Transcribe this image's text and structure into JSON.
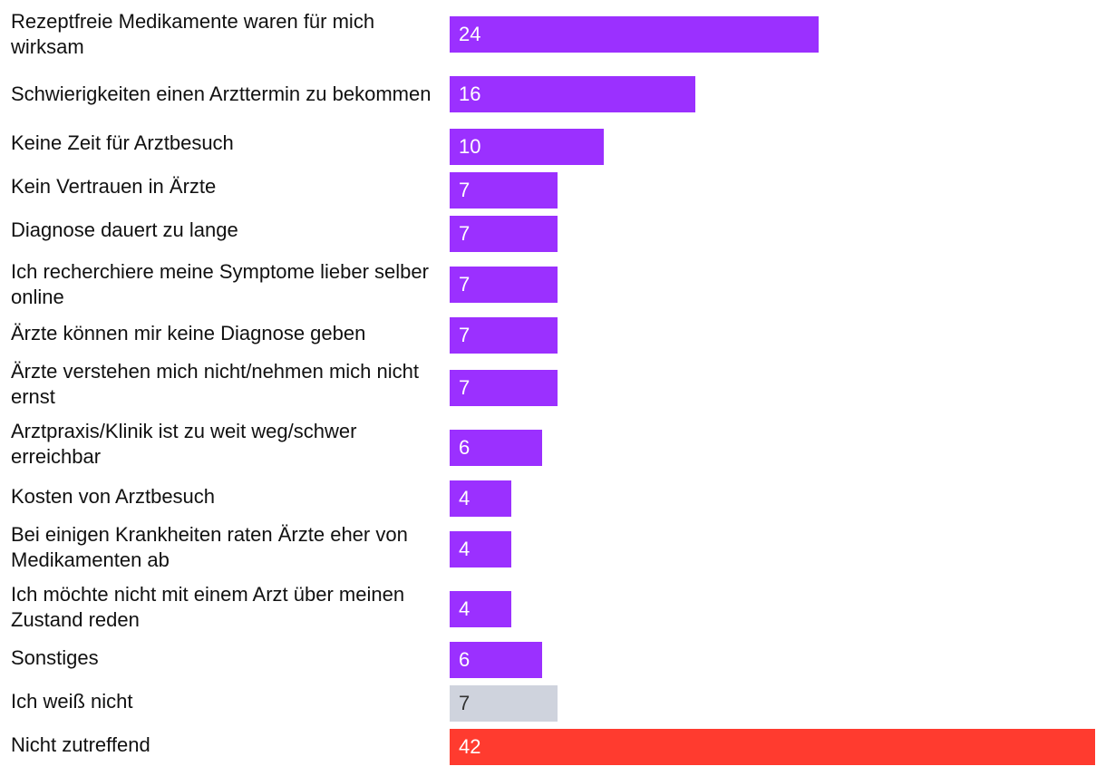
{
  "chart_data": {
    "type": "bar",
    "orientation": "horizontal",
    "title": "",
    "xlabel": "",
    "ylabel": "",
    "xlim": [
      0,
      42
    ],
    "grid": false,
    "legend": "none",
    "colors": {
      "default": "#9b30ff",
      "unknown": "#cfd3dd",
      "not_applicable": "#ff3b2f"
    },
    "categories": [
      "Rezeptfreie Medikamente waren für mich wirksam",
      "Schwierigkeiten einen Arzttermin zu bekommen",
      "Keine Zeit für Arztbesuch",
      "Kein Vertrauen in Ärzte",
      "Diagnose dauert zu lange",
      "Ich recherchiere meine Symptome lieber selber online",
      "Ärzte können mir keine Diagnose geben",
      "Ärzte verstehen mich nicht/nehmen mich nicht ernst",
      "Arztpraxis/Klinik ist zu weit weg/schwer erreichbar",
      "Kosten von Arztbesuch",
      "Bei einigen Krankheiten raten Ärzte eher von Medikamenten ab",
      "Ich möchte nicht mit einem Arzt über meinen Zustand reden",
      "Sonstiges",
      "Ich weiß nicht",
      "Nicht zutreffend"
    ],
    "values": [
      24,
      16,
      10,
      7,
      7,
      7,
      7,
      7,
      6,
      4,
      4,
      4,
      6,
      7,
      42
    ],
    "bar_colors": [
      "default",
      "default",
      "default",
      "default",
      "default",
      "default",
      "default",
      "default",
      "default",
      "default",
      "default",
      "default",
      "default",
      "unknown",
      "not_applicable"
    ],
    "value_label_colors": [
      "#ffffff",
      "#ffffff",
      "#ffffff",
      "#ffffff",
      "#ffffff",
      "#ffffff",
      "#ffffff",
      "#ffffff",
      "#ffffff",
      "#ffffff",
      "#ffffff",
      "#ffffff",
      "#ffffff",
      "#333333",
      "#ffffff"
    ]
  }
}
